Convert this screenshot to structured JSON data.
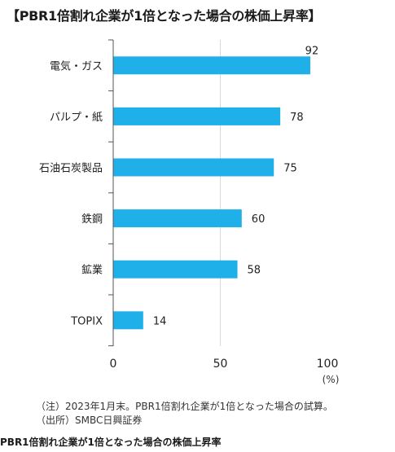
{
  "header": {
    "title": "【PBR1倍割れ企業が1倍となった場合の株価上昇率】"
  },
  "chart_data": {
    "type": "bar",
    "orientation": "horizontal",
    "categories": [
      "電気・ガス",
      "パルプ・紙",
      "石油石炭製品",
      "鉄鋼",
      "鉱業",
      "TOPIX"
    ],
    "values": [
      92,
      78,
      75,
      60,
      58,
      14
    ],
    "x_ticks": [
      "0",
      "50",
      "100"
    ],
    "xlim": [
      0,
      100
    ],
    "unit_label": "(%)",
    "bar_color": "#1fb0ea",
    "grid": "vertical line at 50"
  },
  "notes": [
    "（注）2023年1月末。PBR1倍割れ企業が1倍となった場合の試算。",
    "（出所）SMBC日興証券"
  ],
  "caption": "PBR1倍割れ企業が1倍となった場合の株価上昇率"
}
